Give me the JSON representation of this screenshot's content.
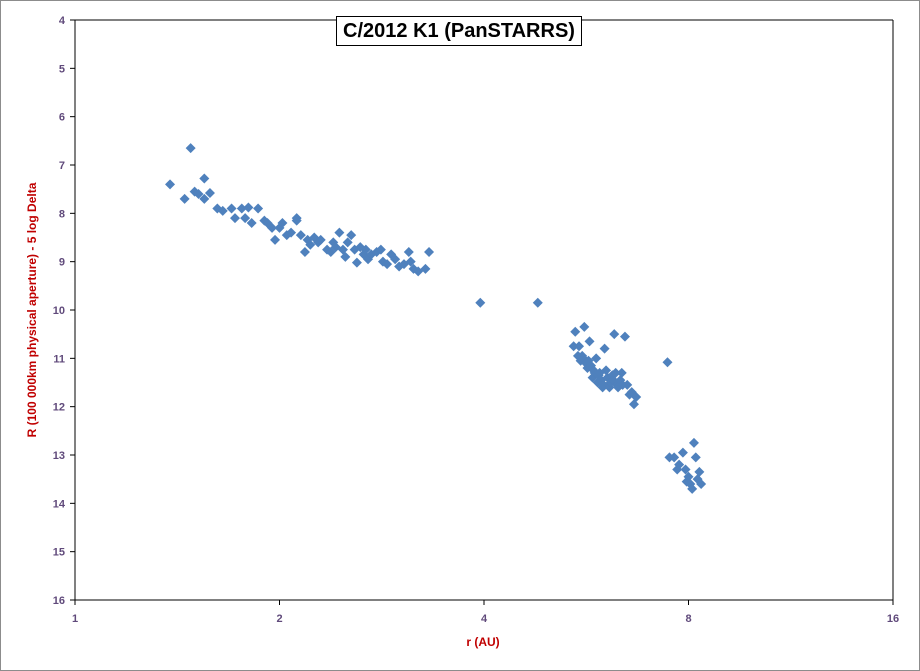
{
  "chart_data": {
    "type": "scatter",
    "title": "C/2012 K1 (PanSTARRS)",
    "xlabel": "r (AU)",
    "ylabel": "R (100 000km physical aperture) - 5 log Delta",
    "x_scale": "log2",
    "xlim": [
      1,
      16
    ],
    "ylim": [
      4,
      16
    ],
    "y_inverted": true,
    "x_ticks": [
      "1",
      "2",
      "4",
      "8",
      "16"
    ],
    "y_ticks": [
      "4",
      "5",
      "6",
      "7",
      "8",
      "9",
      "10",
      "11",
      "12",
      "13",
      "14",
      "15",
      "16"
    ],
    "grid": false,
    "legend": "none",
    "marker": "diamond",
    "colors": {
      "marker": "#4f81bd",
      "tick_labels": "#604a7b",
      "axis_titles": "#c00000",
      "axes": "#000000"
    },
    "series": [
      {
        "values": [
          [
            1.38,
            7.4
          ],
          [
            1.48,
            6.65
          ],
          [
            1.45,
            7.7
          ],
          [
            1.5,
            7.55
          ],
          [
            1.52,
            7.6
          ],
          [
            1.55,
            7.28
          ],
          [
            1.55,
            7.7
          ],
          [
            1.58,
            7.58
          ],
          [
            1.62,
            7.9
          ],
          [
            1.65,
            7.95
          ],
          [
            1.7,
            7.9
          ],
          [
            1.72,
            8.1
          ],
          [
            1.76,
            7.9
          ],
          [
            1.78,
            8.1
          ],
          [
            1.8,
            7.88
          ],
          [
            1.82,
            8.2
          ],
          [
            1.86,
            7.9
          ],
          [
            1.9,
            8.15
          ],
          [
            1.92,
            8.2
          ],
          [
            1.95,
            8.3
          ],
          [
            1.97,
            8.55
          ],
          [
            2.0,
            8.3
          ],
          [
            2.02,
            8.2
          ],
          [
            2.05,
            8.45
          ],
          [
            2.08,
            8.4
          ],
          [
            2.12,
            8.1
          ],
          [
            2.12,
            8.15
          ],
          [
            2.15,
            8.45
          ],
          [
            2.18,
            8.8
          ],
          [
            2.2,
            8.55
          ],
          [
            2.22,
            8.65
          ],
          [
            2.25,
            8.5
          ],
          [
            2.28,
            8.6
          ],
          [
            2.3,
            8.55
          ],
          [
            2.35,
            8.75
          ],
          [
            2.38,
            8.8
          ],
          [
            2.4,
            8.6
          ],
          [
            2.42,
            8.7
          ],
          [
            2.45,
            8.4
          ],
          [
            2.48,
            8.75
          ],
          [
            2.5,
            8.9
          ],
          [
            2.52,
            8.6
          ],
          [
            2.55,
            8.45
          ],
          [
            2.58,
            8.75
          ],
          [
            2.6,
            9.02
          ],
          [
            2.63,
            8.7
          ],
          [
            2.66,
            8.85
          ],
          [
            2.68,
            8.75
          ],
          [
            2.7,
            8.95
          ],
          [
            2.73,
            8.85
          ],
          [
            2.78,
            8.8
          ],
          [
            2.82,
            8.75
          ],
          [
            2.84,
            9.0
          ],
          [
            2.88,
            9.05
          ],
          [
            2.92,
            8.85
          ],
          [
            2.96,
            8.95
          ],
          [
            3.0,
            9.1
          ],
          [
            3.05,
            9.05
          ],
          [
            3.1,
            8.8
          ],
          [
            3.12,
            9.0
          ],
          [
            3.15,
            9.15
          ],
          [
            3.2,
            9.2
          ],
          [
            3.28,
            9.15
          ],
          [
            3.32,
            8.8
          ],
          [
            3.95,
            9.85
          ],
          [
            4.8,
            9.85
          ],
          [
            5.42,
            10.75
          ],
          [
            5.45,
            10.45
          ],
          [
            5.5,
            10.95
          ],
          [
            5.52,
            10.75
          ],
          [
            5.55,
            11.05
          ],
          [
            5.58,
            10.95
          ],
          [
            5.6,
            11.0
          ],
          [
            5.62,
            10.35
          ],
          [
            5.65,
            11.1
          ],
          [
            5.68,
            11.2
          ],
          [
            5.7,
            11.05
          ],
          [
            5.72,
            10.65
          ],
          [
            5.75,
            11.15
          ],
          [
            5.78,
            11.4
          ],
          [
            5.8,
            11.25
          ],
          [
            5.82,
            11.3
          ],
          [
            5.85,
            11.0
          ],
          [
            5.88,
            11.5
          ],
          [
            5.9,
            11.35
          ],
          [
            5.92,
            11.3
          ],
          [
            5.95,
            11.45
          ],
          [
            5.98,
            11.6
          ],
          [
            6.0,
            11.55
          ],
          [
            6.02,
            10.8
          ],
          [
            6.05,
            11.25
          ],
          [
            6.08,
            11.4
          ],
          [
            6.1,
            11.55
          ],
          [
            6.12,
            11.6
          ],
          [
            6.15,
            11.5
          ],
          [
            6.18,
            11.35
          ],
          [
            6.2,
            11.45
          ],
          [
            6.22,
            10.5
          ],
          [
            6.25,
            11.3
          ],
          [
            6.28,
            11.55
          ],
          [
            6.3,
            11.6
          ],
          [
            6.35,
            11.45
          ],
          [
            6.38,
            11.3
          ],
          [
            6.4,
            11.55
          ],
          [
            6.45,
            10.55
          ],
          [
            6.5,
            11.55
          ],
          [
            6.55,
            11.75
          ],
          [
            6.6,
            11.7
          ],
          [
            6.65,
            11.95
          ],
          [
            6.7,
            11.8
          ],
          [
            7.45,
            11.08
          ],
          [
            7.5,
            13.05
          ],
          [
            7.62,
            13.05
          ],
          [
            7.7,
            13.3
          ],
          [
            7.75,
            13.2
          ],
          [
            7.85,
            12.95
          ],
          [
            7.92,
            13.3
          ],
          [
            7.95,
            13.55
          ],
          [
            8.0,
            13.45
          ],
          [
            8.05,
            13.6
          ],
          [
            8.1,
            13.7
          ],
          [
            8.15,
            12.75
          ],
          [
            8.2,
            13.05
          ],
          [
            8.25,
            13.5
          ],
          [
            8.3,
            13.35
          ],
          [
            8.35,
            13.6
          ]
        ]
      }
    ]
  }
}
